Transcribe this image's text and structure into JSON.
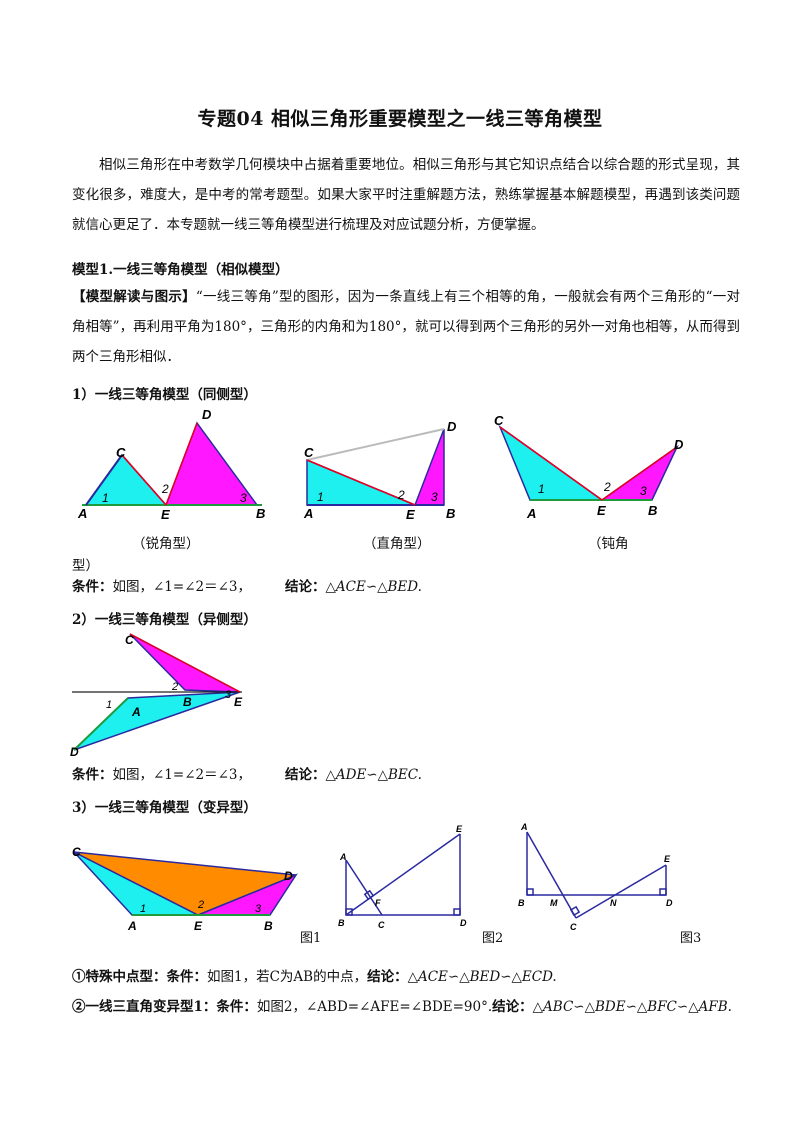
{
  "title": "专题04  相似三角形重要模型之一线三等角模型",
  "intro": "相似三角形在中考数学几何模块中占据着重要地位。相似三角形与其它知识点结合以综合题的形式呈现，其变化很多，难度大，是中考的常考题型。如果大家平时注重解题方法，熟练掌握基本解题模型，再遇到该类问题就信心更足了．本专题就一线三等角模型进行梳理及对应试题分析，方便掌握。",
  "model1": {
    "heading": "模型1.一线三等角模型（相似模型）",
    "explain_label": "【模型解读与图示】",
    "explain_text": "“一线三等角”型的图形，因为一条直线上有三个相等的角，一般就会有两个三角形的“一对角相等”，再利用平角为180°，三角形的内角和为180°，就可以得到两个三角形的另外一对角也相等，从而得到两个三角形相似．"
  },
  "part1": {
    "heading": "1）一线三等角模型（同侧型）",
    "captions": [
      "（锐角型）",
      "（直角型）",
      "（钝角",
      "型）"
    ],
    "cond_label": "条件：",
    "cond_text": "如图，∠1=∠2＝∠3，",
    "concl_label": "结论：",
    "concl_text": "△ACE∽△BED."
  },
  "part2": {
    "heading": "2）一线三等角模型（异侧型）",
    "cond_label": "条件：",
    "cond_text": "如图，∠1=∠2＝∠3，",
    "concl_label": "结论：",
    "concl_text": "△ADE∽△BEC."
  },
  "part3": {
    "heading": "3）一线三等角模型（变异型）",
    "figure_labels": [
      "图1",
      "图2",
      "图3"
    ]
  },
  "case1": {
    "label": "①特殊中点型：条件：",
    "text": "如图1，若C为AB的中点，",
    "concl_label": "结论：",
    "concl_text": "△ACE∽△BED∽△ECD."
  },
  "case2": {
    "label": "②一线三直角变异型1：条件：",
    "text": "如图2，∠ABD=∠AFE=∠BDE=90°.",
    "concl_label": "结论：",
    "concl_text": "△ABC∽△BDE∽△BFC∽△AFB."
  },
  "colors": {
    "cyan": "#1ef0f0",
    "magenta": "#ff18ff",
    "orange": "#ff8c00",
    "red": "#e8001e",
    "blue": "#2a2aa0",
    "green": "#1e9b3c"
  },
  "points": {
    "fig_a": [
      "A",
      "B",
      "C",
      "D",
      "E",
      "1",
      "2",
      "3"
    ],
    "fig_b": [
      "A",
      "B",
      "C",
      "D",
      "E",
      "1",
      "2",
      "3"
    ],
    "fig_c": [
      "A",
      "B",
      "C",
      "D",
      "E",
      "1",
      "2",
      "3"
    ],
    "fig_d": [
      "A",
      "B",
      "C",
      "D",
      "E",
      "1",
      "2",
      "3"
    ],
    "fig_e": [
      "A",
      "B",
      "C",
      "D",
      "E",
      "1",
      "2",
      "3"
    ],
    "fig_f": [
      "A",
      "B",
      "C",
      "D",
      "E",
      "F"
    ],
    "fig_g": [
      "A",
      "B",
      "C",
      "D",
      "E",
      "M",
      "N"
    ]
  }
}
